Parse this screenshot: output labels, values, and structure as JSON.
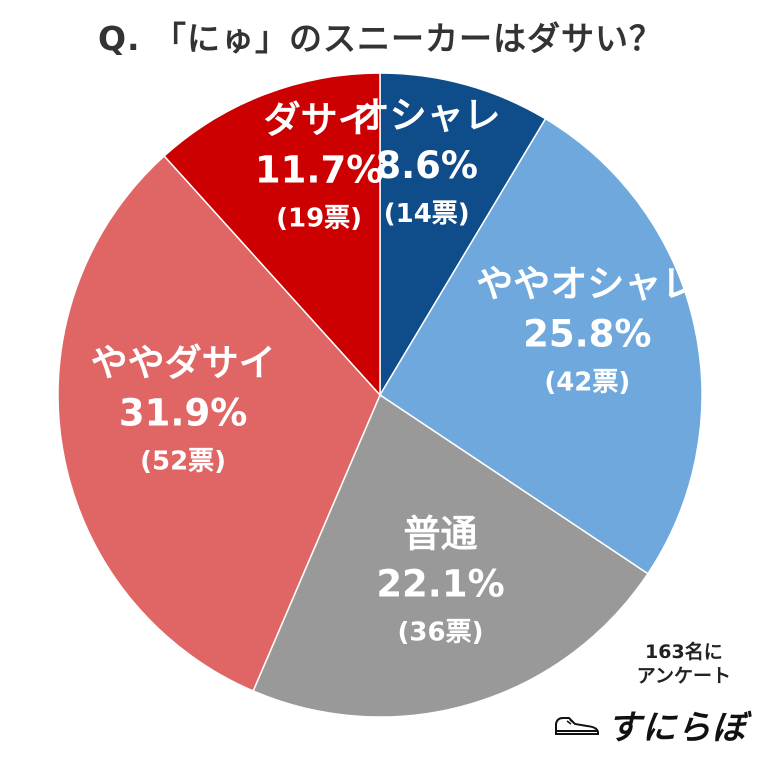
{
  "title": "Q. 「にゅ」のスニーカーはダサい？",
  "respondents_line1": "163名に",
  "respondents_line2": "アンケート",
  "brand": {
    "name": "すにらぼ",
    "icon": "sneaker-icon"
  },
  "chart_data": {
    "type": "pie",
    "title": "Q. 「にゅ」のスニーカーはダサい？",
    "start": "top",
    "direction": "clockwise",
    "slices": [
      {
        "label": "オシャレ",
        "percent": 8.6,
        "percent_label": "8.6%",
        "votes_label": "(14票)",
        "votes": 14,
        "color": "#0f4c8a"
      },
      {
        "label": "ややオシャレ",
        "percent": 25.8,
        "percent_label": "25.8%",
        "votes_label": "(42票)",
        "votes": 42,
        "color": "#6fa8dc"
      },
      {
        "label": "普通",
        "percent": 22.1,
        "percent_label": "22.1%",
        "votes_label": "(36票)",
        "votes": 36,
        "color": "#999999"
      },
      {
        "label": "ややダサイ",
        "percent": 31.9,
        "percent_label": "31.9%",
        "votes_label": "(52票)",
        "votes": 52,
        "color": "#e06666"
      },
      {
        "label": "ダサイ",
        "percent": 11.7,
        "percent_label": "11.7%",
        "votes_label": "(19票)",
        "votes": 19,
        "color": "#cc0000"
      }
    ]
  }
}
